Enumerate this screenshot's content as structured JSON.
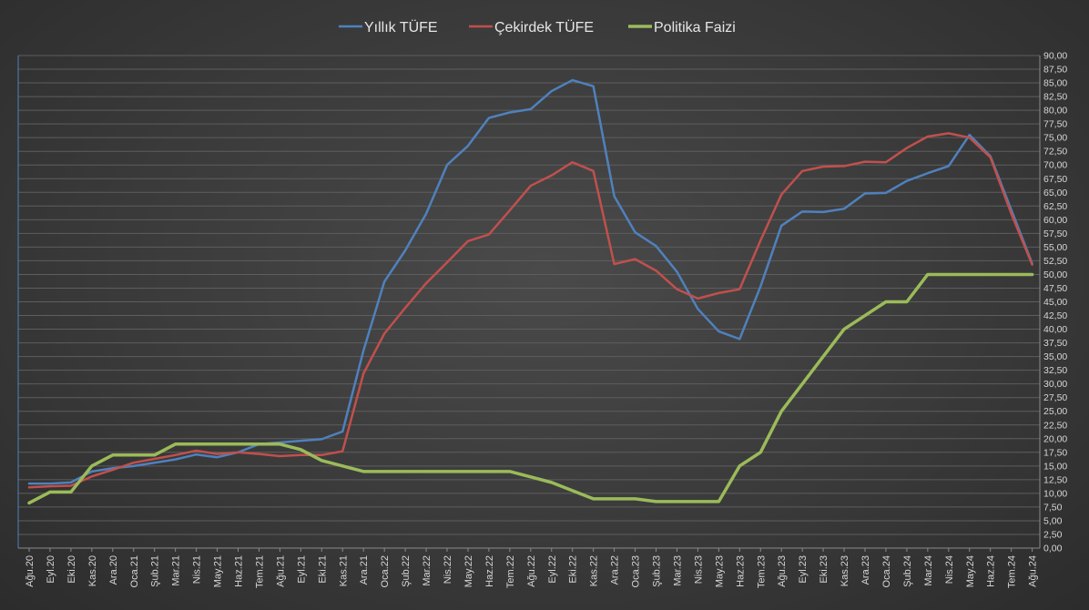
{
  "chart_data": {
    "type": "line",
    "categories": [
      "Ağu.20",
      "Eyl.20",
      "Eki.20",
      "Kas.20",
      "Ara.20",
      "Oca.21",
      "Şub.21",
      "Mar.21",
      "Nis.21",
      "May.21",
      "Haz.21",
      "Tem.21",
      "Ağu.21",
      "Eyl.21",
      "Eki.21",
      "Kas.21",
      "Ara.21",
      "Oca.22",
      "Şub.22",
      "Mar.22",
      "Nis.22",
      "May.22",
      "Haz.22",
      "Tem.22",
      "Ağu.22",
      "Eyl.22",
      "Eki.22",
      "Kas.22",
      "Ara.22",
      "Oca.23",
      "Şub.23",
      "Mar.23",
      "Nis.23",
      "May.23",
      "Haz.23",
      "Tem.23",
      "Ağu.23",
      "Eyl.23",
      "Eki.23",
      "Kas.23",
      "Ara.23",
      "Oca.24",
      "Şub.24",
      "Mar.24",
      "Nis.24",
      "May.24",
      "Haz.24",
      "Tem.24",
      "Ağu.24"
    ],
    "series": [
      {
        "name": "Yıllık TÜFE",
        "color": "#4f81bd",
        "values": [
          11.8,
          11.8,
          12.0,
          14.0,
          14.6,
          15.0,
          15.6,
          16.2,
          17.1,
          16.6,
          17.5,
          19.0,
          19.3,
          19.6,
          19.9,
          21.3,
          36.1,
          48.7,
          54.4,
          61.1,
          70.0,
          73.5,
          78.6,
          79.6,
          80.2,
          83.5,
          85.5,
          84.4,
          64.3,
          57.7,
          55.2,
          50.5,
          43.7,
          39.6,
          38.2,
          47.8,
          58.9,
          61.5,
          61.4,
          62.0,
          64.8,
          64.9,
          67.1,
          68.5,
          69.8,
          75.5,
          71.6,
          61.8,
          52.0
        ]
      },
      {
        "name": "Çekirdek TÜFE",
        "color": "#c0504d",
        "values": [
          11.1,
          11.3,
          11.4,
          13.1,
          14.3,
          15.6,
          16.3,
          17.0,
          17.8,
          17.2,
          17.5,
          17.2,
          16.8,
          17.0,
          17.0,
          17.7,
          31.9,
          39.2,
          43.9,
          48.4,
          52.2,
          56.1,
          57.3,
          61.7,
          66.2,
          68.1,
          70.5,
          68.9,
          51.9,
          52.8,
          50.7,
          47.3,
          45.6,
          46.6,
          47.3,
          56.2,
          64.6,
          68.9,
          69.7,
          69.8,
          70.6,
          70.5,
          73.1,
          75.2,
          75.8,
          75.0,
          71.4,
          61.1,
          51.8
        ]
      },
      {
        "name": "Politika Faizi",
        "color": "#9bbb59",
        "values": [
          8.25,
          10.25,
          10.25,
          15.0,
          17.0,
          17.0,
          17.0,
          19.0,
          19.0,
          19.0,
          19.0,
          19.0,
          19.0,
          18.0,
          16.0,
          15.0,
          14.0,
          14.0,
          14.0,
          14.0,
          14.0,
          14.0,
          14.0,
          14.0,
          13.0,
          12.0,
          10.5,
          9.0,
          9.0,
          9.0,
          8.5,
          8.5,
          8.5,
          8.5,
          15.0,
          17.5,
          25.0,
          30.0,
          35.0,
          40.0,
          42.5,
          45.0,
          45.0,
          50.0,
          50.0,
          50.0,
          50.0,
          50.0,
          50.0
        ]
      }
    ],
    "ylim": [
      0,
      90
    ],
    "ytick_step": 2.5,
    "ytick_labels": [
      "0,00",
      "2,50",
      "5,00",
      "7,50",
      "10,00",
      "12,50",
      "15,00",
      "17,50",
      "20,00",
      "22,50",
      "25,00",
      "27,50",
      "30,00",
      "32,50",
      "35,00",
      "37,50",
      "40,00",
      "42,50",
      "45,00",
      "47,50",
      "50,00",
      "52,50",
      "55,00",
      "57,50",
      "60,00",
      "62,50",
      "65,00",
      "67,50",
      "70,00",
      "72,50",
      "75,00",
      "77,50",
      "80,00",
      "82,50",
      "85,00",
      "87,50",
      "90,00"
    ],
    "yaxis_side": "right",
    "grid": true,
    "legend_position": "top"
  },
  "colors": {
    "gridline": "#5e5e5e",
    "axis": "#8a8a8a",
    "left_axis": "#4f81bd"
  }
}
